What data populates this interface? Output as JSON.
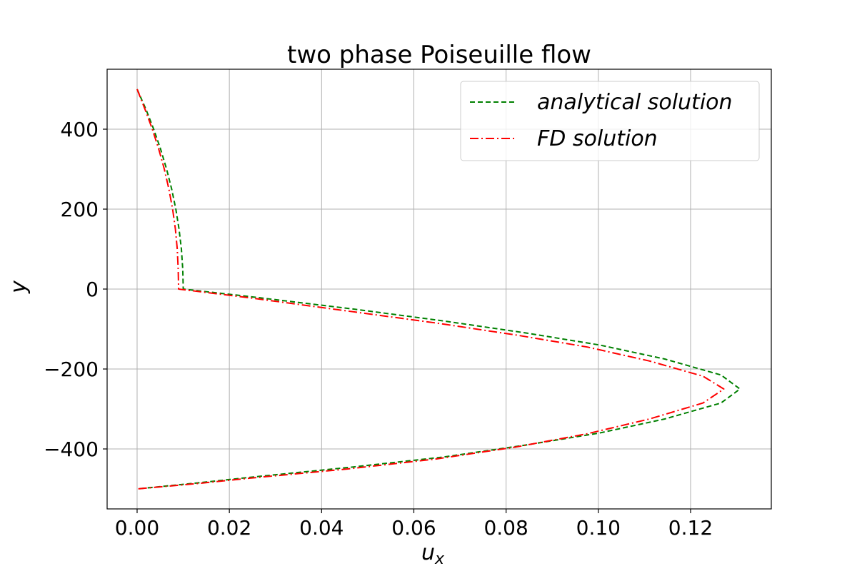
{
  "chart_data": {
    "type": "line",
    "title": "two phase Poiseuille flow",
    "xlabel": "u",
    "xlabel_sub": "x",
    "ylabel": "y",
    "xlim": [
      -0.0065,
      0.1375
    ],
    "ylim": [
      -550,
      550
    ],
    "xticks": [
      0.0,
      0.02,
      0.04,
      0.06,
      0.08,
      0.1,
      0.12
    ],
    "xtick_labels": [
      "0.00",
      "0.02",
      "0.04",
      "0.06",
      "0.08",
      "0.10",
      "0.12"
    ],
    "yticks": [
      400,
      200,
      0,
      -200,
      -400
    ],
    "ytick_labels": [
      "400",
      "200",
      "0",
      "−200",
      "−400"
    ],
    "grid": true,
    "legend_position": "top-right",
    "series": [
      {
        "name": "analytical solution",
        "color": "#008000",
        "dash": "dashed",
        "x": [
          0.0,
          0.0019,
          0.0036,
          0.0051,
          0.0064,
          0.0075,
          0.0084,
          0.0091,
          0.0096,
          0.0099,
          0.01,
          0.0253,
          0.0469,
          0.0666,
          0.0844,
          0.1003,
          0.1144,
          0.1266,
          0.1307,
          0.1266,
          0.1144,
          0.1003,
          0.0844,
          0.0666,
          0.0469,
          0.0253,
          0.0131,
          0.0
        ],
        "y": [
          500,
          450,
          400,
          350,
          300,
          250,
          200,
          150,
          100,
          50,
          0,
          -20,
          -50,
          -80,
          -110,
          -140,
          -175,
          -215,
          -250,
          -285,
          -325,
          -360,
          -390,
          -420,
          -445,
          -470,
          -485,
          -500
        ]
      },
      {
        "name": "FD solution",
        "color": "#ff0000",
        "dash": "dashdot",
        "x": [
          0.0,
          0.0017,
          0.0033,
          0.0047,
          0.0059,
          0.0069,
          0.0077,
          0.0083,
          0.0087,
          0.0089,
          0.009,
          0.0245,
          0.0457,
          0.0649,
          0.0822,
          0.0976,
          0.1111,
          0.1227,
          0.1272,
          0.1227,
          0.1111,
          0.0976,
          0.0822,
          0.0649,
          0.0457,
          0.0245,
          0.0127,
          0.0
        ],
        "y": [
          500,
          450,
          400,
          350,
          300,
          250,
          200,
          150,
          100,
          50,
          0,
          -22,
          -55,
          -85,
          -115,
          -145,
          -180,
          -218,
          -250,
          -285,
          -325,
          -362,
          -395,
          -425,
          -450,
          -473,
          -487,
          -500
        ]
      }
    ]
  }
}
